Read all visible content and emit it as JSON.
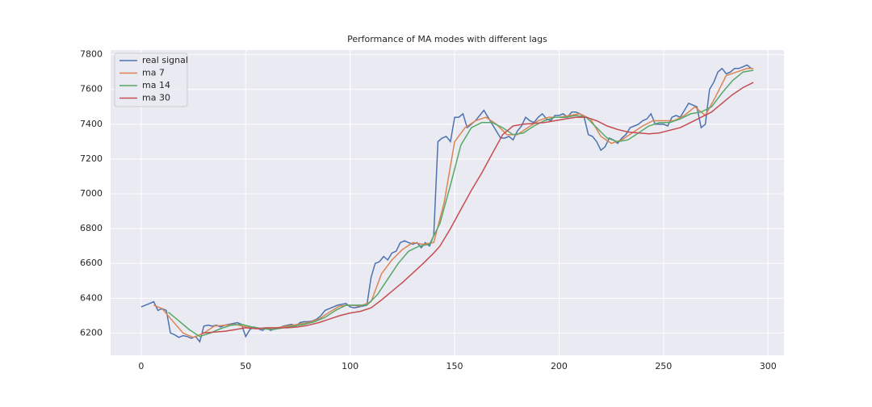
{
  "chart_data": {
    "type": "line",
    "title": "Performance of MA modes with different lags",
    "xlim": [
      -14.65,
      307.65
    ],
    "xticks": [
      0,
      50,
      100,
      150,
      200,
      250,
      300
    ],
    "ylim": [
      6072,
      7826
    ],
    "yticks": [
      6200,
      6400,
      6600,
      6800,
      7000,
      7200,
      7400,
      7600,
      7800
    ],
    "grid": true,
    "legend": "upper left",
    "series": [
      {
        "name": "real signal",
        "color": "#4c72b0",
        "x": [
          0,
          2,
          4,
          6,
          8,
          10,
          12,
          14,
          16,
          18,
          20,
          22,
          24,
          26,
          28,
          30,
          32,
          34,
          36,
          38,
          40,
          42,
          44,
          46,
          48,
          50,
          52,
          54,
          56,
          58,
          60,
          62,
          64,
          66,
          68,
          70,
          72,
          74,
          76,
          78,
          80,
          82,
          84,
          86,
          88,
          90,
          92,
          94,
          96,
          98,
          100,
          102,
          104,
          106,
          108,
          110,
          112,
          114,
          116,
          118,
          120,
          122,
          124,
          126,
          128,
          130,
          132,
          134,
          136,
          138,
          140,
          142,
          144,
          146,
          148,
          150,
          152,
          154,
          156,
          158,
          160,
          162,
          164,
          166,
          168,
          170,
          172,
          174,
          176,
          178,
          180,
          182,
          184,
          186,
          188,
          190,
          192,
          194,
          196,
          198,
          200,
          202,
          204,
          206,
          208,
          210,
          212,
          214,
          216,
          218,
          220,
          222,
          224,
          226,
          228,
          230,
          232,
          234,
          236,
          238,
          240,
          242,
          244,
          246,
          248,
          250,
          252,
          254,
          256,
          258,
          260,
          262,
          264,
          266,
          268,
          270,
          272,
          274,
          276,
          278,
          280,
          282,
          284,
          286,
          288,
          290,
          292
        ],
        "values": [
          6350,
          6360,
          6370,
          6380,
          6330,
          6340,
          6330,
          6200,
          6190,
          6175,
          6185,
          6180,
          6170,
          6180,
          6150,
          6240,
          6245,
          6240,
          6245,
          6235,
          6245,
          6250,
          6255,
          6260,
          6250,
          6180,
          6220,
          6235,
          6225,
          6215,
          6230,
          6215,
          6225,
          6230,
          6240,
          6245,
          6250,
          6240,
          6260,
          6265,
          6265,
          6270,
          6280,
          6300,
          6330,
          6340,
          6350,
          6360,
          6365,
          6370,
          6350,
          6345,
          6350,
          6355,
          6360,
          6520,
          6600,
          6610,
          6640,
          6620,
          6660,
          6670,
          6720,
          6730,
          6720,
          6710,
          6720,
          6690,
          6720,
          6700,
          6760,
          7300,
          7320,
          7330,
          7300,
          7440,
          7440,
          7460,
          7380,
          7400,
          7420,
          7450,
          7480,
          7440,
          7400,
          7360,
          7320,
          7320,
          7330,
          7310,
          7360,
          7390,
          7440,
          7420,
          7410,
          7440,
          7460,
          7430,
          7420,
          7450,
          7450,
          7460,
          7440,
          7470,
          7470,
          7460,
          7440,
          7340,
          7330,
          7300,
          7250,
          7270,
          7320,
          7310,
          7290,
          7320,
          7340,
          7380,
          7390,
          7400,
          7420,
          7430,
          7460,
          7400,
          7400,
          7400,
          7390,
          7440,
          7450,
          7440,
          7480,
          7520,
          7510,
          7500,
          7380,
          7400,
          7600,
          7640,
          7700,
          7720,
          7690,
          7700,
          7720,
          7720,
          7730,
          7740,
          7720
        ]
      },
      {
        "name": "ma 7",
        "color": "#dd8452",
        "x": [
          6,
          10,
          15,
          20,
          25,
          30,
          35,
          40,
          45,
          50,
          55,
          60,
          65,
          70,
          75,
          80,
          85,
          90,
          95,
          100,
          105,
          110,
          115,
          120,
          125,
          130,
          135,
          140,
          145,
          150,
          155,
          160,
          165,
          170,
          175,
          180,
          185,
          190,
          195,
          200,
          205,
          210,
          215,
          220,
          225,
          230,
          235,
          240,
          245,
          250,
          255,
          260,
          265,
          270,
          275,
          280,
          285,
          290,
          293
        ],
        "values": [
          6360,
          6340,
          6270,
          6200,
          6175,
          6200,
          6240,
          6245,
          6250,
          6235,
          6225,
          6225,
          6230,
          6240,
          6250,
          6260,
          6280,
          6320,
          6355,
          6360,
          6355,
          6380,
          6540,
          6620,
          6680,
          6720,
          6710,
          6720,
          6950,
          7300,
          7380,
          7420,
          7440,
          7400,
          7340,
          7340,
          7380,
          7420,
          7440,
          7440,
          7450,
          7460,
          7430,
          7330,
          7290,
          7310,
          7350,
          7390,
          7420,
          7420,
          7420,
          7450,
          7500,
          7450,
          7560,
          7680,
          7700,
          7720,
          7720
        ]
      },
      {
        "name": "ma 14",
        "color": "#55a868",
        "x": [
          13,
          18,
          23,
          28,
          33,
          38,
          43,
          48,
          53,
          58,
          63,
          68,
          73,
          78,
          83,
          88,
          93,
          98,
          103,
          108,
          113,
          118,
          123,
          128,
          133,
          138,
          143,
          148,
          153,
          158,
          163,
          168,
          173,
          178,
          183,
          188,
          193,
          198,
          203,
          208,
          213,
          218,
          223,
          228,
          233,
          238,
          243,
          248,
          253,
          258,
          263,
          268,
          273,
          278,
          283,
          288,
          293
        ],
        "values": [
          6320,
          6270,
          6220,
          6180,
          6200,
          6225,
          6245,
          6250,
          6235,
          6225,
          6220,
          6230,
          6240,
          6250,
          6265,
          6290,
          6330,
          6360,
          6360,
          6360,
          6420,
          6510,
          6600,
          6670,
          6700,
          6710,
          6830,
          7050,
          7280,
          7380,
          7410,
          7410,
          7380,
          7340,
          7350,
          7390,
          7420,
          7440,
          7440,
          7450,
          7440,
          7380,
          7320,
          7300,
          7310,
          7350,
          7390,
          7410,
          7410,
          7430,
          7460,
          7470,
          7500,
          7580,
          7650,
          7700,
          7710
        ]
      },
      {
        "name": "ma 30",
        "color": "#c44e52",
        "x": [
          29,
          35,
          40,
          45,
          50,
          55,
          60,
          65,
          70,
          75,
          80,
          85,
          90,
          95,
          100,
          105,
          110,
          115,
          120,
          125,
          130,
          135,
          140,
          143,
          148,
          153,
          158,
          163,
          168,
          173,
          178,
          183,
          188,
          193,
          198,
          203,
          208,
          213,
          218,
          223,
          228,
          233,
          238,
          243,
          248,
          253,
          258,
          263,
          268,
          273,
          278,
          283,
          288,
          293
        ],
        "values": [
          6200,
          6205,
          6210,
          6220,
          6230,
          6225,
          6230,
          6230,
          6230,
          6235,
          6245,
          6260,
          6280,
          6300,
          6315,
          6325,
          6345,
          6390,
          6440,
          6490,
          6545,
          6600,
          6660,
          6700,
          6800,
          6910,
          7020,
          7120,
          7230,
          7340,
          7390,
          7400,
          7405,
          7410,
          7420,
          7430,
          7440,
          7440,
          7420,
          7390,
          7370,
          7355,
          7350,
          7345,
          7350,
          7365,
          7380,
          7410,
          7440,
          7470,
          7520,
          7570,
          7610,
          7640
        ]
      }
    ]
  }
}
